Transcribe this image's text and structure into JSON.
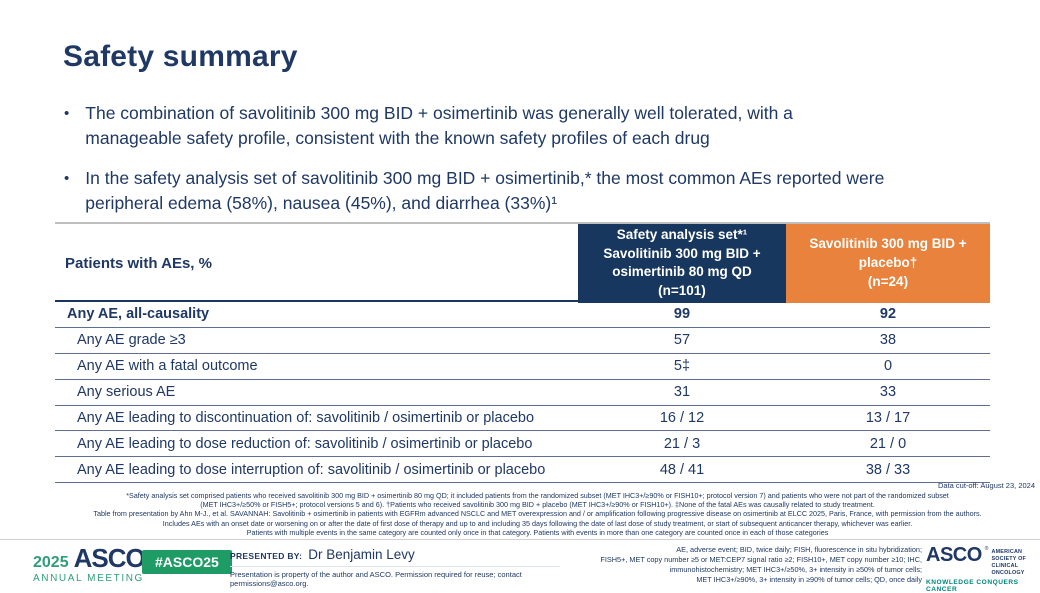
{
  "slide": {
    "title": "Safety summary"
  },
  "colors": {
    "navy_text": "#1F3864",
    "header_navy_bg": "#17375E",
    "header_orange_bg": "#E8823C",
    "badge_green": "#1F9C66",
    "meeting_green": "#2E9E77",
    "tagline_teal": "#00857C",
    "row_divider": "#5E6F91"
  },
  "bullets": [
    {
      "marker": "•",
      "text": "The combination of savolitinib 300 mg BID + osimertinib was generally well tolerated, with a\nmanageable safety profile, consistent with the known safety profiles of each drug"
    },
    {
      "marker": "•",
      "text": "In the safety analysis set of savolitinib 300 mg BID + osimertinib,* the most common AEs reported were\nperipheral edema (58%), nausea (45%), and diarrhea (33%)¹"
    }
  ],
  "table": {
    "row_header": "Patients with AEs, %",
    "col_combo_header": "Safety analysis set*¹\nSavolitinib 300 mg BID +\nosimertinib 80 mg QD\n(n=101)",
    "col_placebo_header": "Savolitinib 300 mg BID +\nplacebo†\n(n=24)",
    "rows": [
      {
        "label": "Any AE, all-causality",
        "combo": "99",
        "placebo": "92"
      },
      {
        "label": "Any AE grade ≥3",
        "combo": "57",
        "placebo": "38"
      },
      {
        "label": "Any AE with a fatal outcome",
        "combo": "5‡",
        "placebo": "0"
      },
      {
        "label": "Any serious AE",
        "combo": "31",
        "placebo": "33"
      },
      {
        "label": "Any AE leading to discontinuation of: savolitinib / osimertinib or placebo",
        "combo": "16 / 12",
        "placebo": "13 / 17"
      },
      {
        "label": "Any AE leading to dose reduction of: savolitinib / osimertinib or placebo",
        "combo": "21 / 3",
        "placebo": "21 / 0"
      },
      {
        "label": "Any AE leading to dose interruption of: savolitinib / osimertinib or placebo",
        "combo": "48 / 41",
        "placebo": "38 / 33"
      }
    ]
  },
  "footnotes": {
    "data_cutoff": "Data cut-off: August 23, 2024",
    "lines": [
      "*Safety analysis set comprised patients who received savolitinib 300 mg BID + osimertinib 80 mg QD; it included patients from the randomized subset (MET IHC3+/≥90% or FISH10+; protocol version 7) and patients who were not part of the randomized subset",
      "(MET IHC3+/≥50% or FISH5+; protocol versions 5 and 6). †Patients who received savolitinib 300 mg BID + placebo (MET IHC3+/≥90% or FISH10+). ‡None of the fatal AEs was causally related to study treatment.",
      "Table from presentation by Ahn M-J., et al. SAVANNAH: Savolitinib + osimertinib in patients with EGFRm advanced NSCLC and MET overexpression and / or amplification following progressive disease on osimertinib at ELCC 2025, Paris, France, with permission from the authors.",
      "Includes AEs with an onset date or worsening on or after the date of first dose of therapy and up to and including 35 days following the date of last dose of study treatment, or start of subsequent anticancer therapy, whichever was earlier.",
      "Patients with multiple events in the same category are counted only once in that category. Patients with events in more than one category are counted once in each of those categories"
    ]
  },
  "footer": {
    "meeting_logo": {
      "year": "2025",
      "name": "ASCO",
      "mark": "®",
      "subtitle": "ANNUAL MEETING"
    },
    "hashtag": "#ASCO25",
    "presented_by_label": "PRESENTED BY:",
    "presenter": "Dr Benjamin Levy",
    "permission": "Presentation is property of the author and ASCO. Permission required for reuse; contact permissions@asco.org.",
    "abbreviations": "AE, adverse event; BID, twice daily; FISH, fluorescence in situ hybridization;\nFISH5+, MET copy number ≥5 or MET:CEP7 signal ratio ≥2; FISH10+, MET copy number ≥10; IHC,\nimmunohistochemistry; MET IHC3+/≥50%, 3+ intensity in ≥50% of tumor cells;\nMET IHC3+/≥90%, 3+ intensity in ≥90% of tumor cells; QD, once daily",
    "asco_logo": {
      "name": "ASCO",
      "mark": "®",
      "society": "AMERICAN SOCIETY OF\nCLINICAL ONCOLOGY",
      "tagline": "KNOWLEDGE CONQUERS CANCER"
    }
  }
}
